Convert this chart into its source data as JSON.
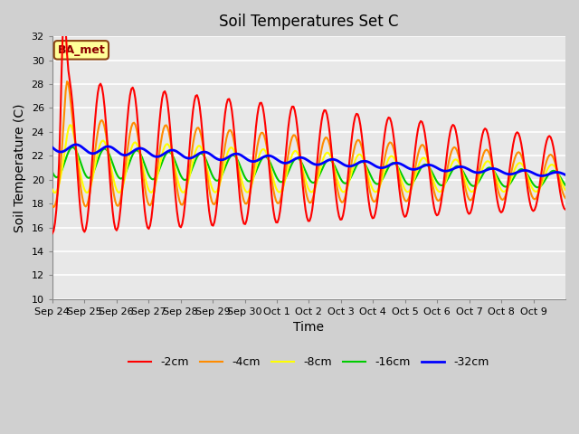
{
  "title": "Soil Temperatures Set C",
  "xlabel": "Time",
  "ylabel": "Soil Temperature (C)",
  "ylim": [
    10,
    32
  ],
  "yticks": [
    10,
    12,
    14,
    16,
    18,
    20,
    22,
    24,
    26,
    28,
    30,
    32
  ],
  "annotation": "BA_met",
  "annotation_color": "#8B0000",
  "annotation_bg": "#FFFF99",
  "annotation_border": "#8B4513",
  "line_colors": {
    "-2cm": "#FF0000",
    "-4cm": "#FF8C00",
    "-8cm": "#FFFF00",
    "-16cm": "#00CC00",
    "-32cm": "#0000FF"
  },
  "line_widths": {
    "-2cm": 1.5,
    "-4cm": 1.5,
    "-8cm": 1.5,
    "-16cm": 1.5,
    "-32cm": 2.0
  },
  "xtick_labels": [
    "Sep 24",
    "Sep 25",
    "Sep 26",
    "Sep 27",
    "Sep 28",
    "Sep 29",
    "Sep 30",
    "Oct 1",
    "Oct 2",
    "Oct 3",
    "Oct 4",
    "Oct 5",
    "Oct 6",
    "Oct 7",
    "Oct 8",
    "Oct 9"
  ],
  "n_days": 16,
  "figsize": [
    6.4,
    4.8
  ],
  "dpi": 100
}
